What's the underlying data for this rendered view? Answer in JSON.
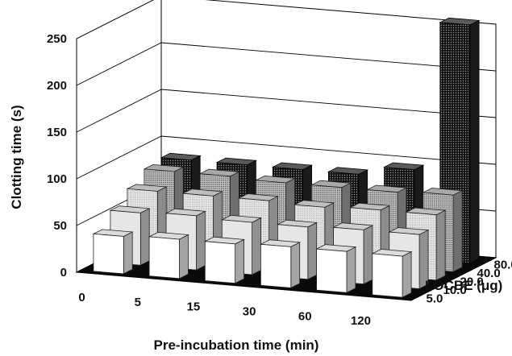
{
  "chart_data": {
    "type": "bar",
    "projection": "3d",
    "ylabel": "Clotting time (s)",
    "xlabel": "Pre-incubation time (min)",
    "zlabel": "LOCBE (μg)",
    "ylim": [
      0,
      250
    ],
    "yticks": [
      "0",
      "50",
      "100",
      "150",
      "200",
      "250"
    ],
    "categories": [
      "0",
      "5",
      "15",
      "30",
      "60",
      "120"
    ],
    "grid": true,
    "series": [
      {
        "name": "5.0",
        "values": [
          40,
          42,
          42,
          44,
          44,
          44
        ]
      },
      {
        "name": "10.0",
        "values": [
          56,
          58,
          56,
          56,
          58,
          58
        ]
      },
      {
        "name": "20.0",
        "values": [
          70,
          70,
          70,
          68,
          70,
          70
        ]
      },
      {
        "name": "40.0",
        "values": [
          82,
          82,
          80,
          80,
          80,
          82
        ]
      },
      {
        "name": "80.0",
        "values": [
          85,
          85,
          85,
          85,
          95,
          255
        ]
      }
    ]
  }
}
